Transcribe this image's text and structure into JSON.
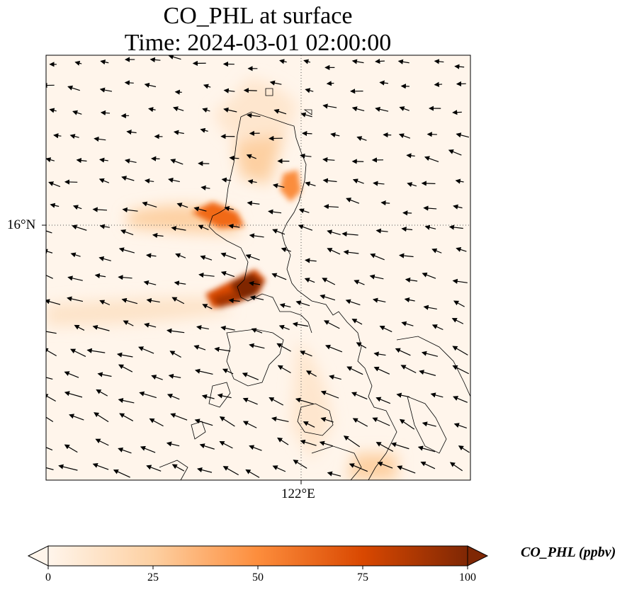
{
  "title": {
    "line1": "CO_PHL at surface",
    "line2": "Time: 2024-03-01 02:00:00"
  },
  "axes": {
    "lat_label": "16°N",
    "lon_label": "122°E"
  },
  "colorbar": {
    "label": "CO_PHL (ppbv)",
    "ticks": [
      "0",
      "25",
      "50",
      "75",
      "100"
    ],
    "range": [
      0,
      100
    ],
    "colormap": [
      "#fff5eb",
      "#fdd0a2",
      "#fd8d3c",
      "#d94801",
      "#7f2704"
    ],
    "extend": "both"
  },
  "map": {
    "background": "#fff5eb",
    "coastline_color": "#000000",
    "gridline_style": "dotted",
    "wind_vectors": "black arrows, generally westward / south-westward flow"
  }
}
